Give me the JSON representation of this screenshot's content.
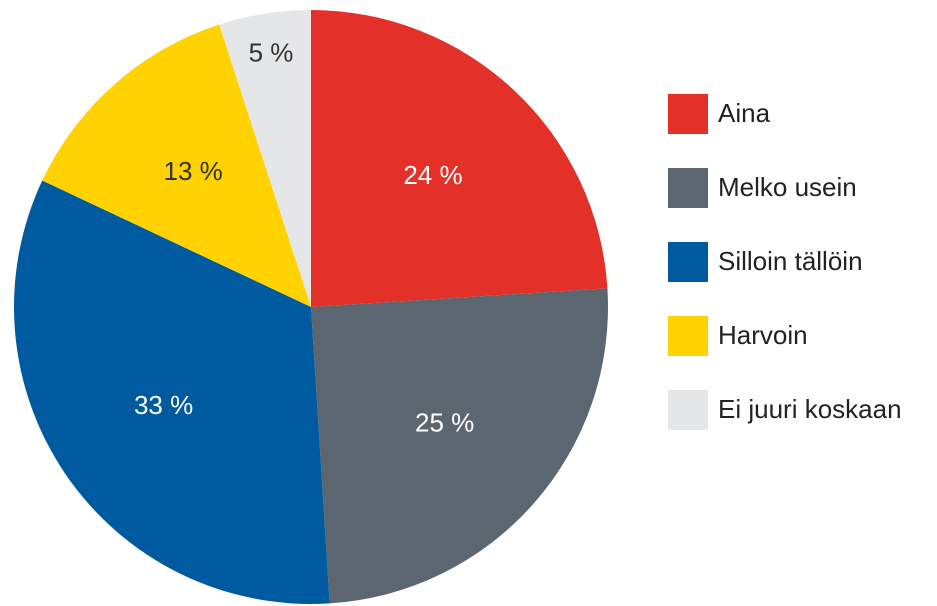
{
  "chart_data": {
    "type": "pie",
    "categories": [
      "Aina",
      "Melko usein",
      "Silloin tällöin",
      "Harvoin",
      "Ei juuri koskaan"
    ],
    "values": [
      24,
      25,
      33,
      13,
      5
    ],
    "value_labels": [
      "24 %",
      "25 %",
      "33 %",
      "13 %",
      "5 %"
    ],
    "colors": [
      "#e3312a",
      "#5b6670",
      "#005aa0",
      "#ffd200",
      "#e5e6e8"
    ],
    "legend": "right"
  }
}
